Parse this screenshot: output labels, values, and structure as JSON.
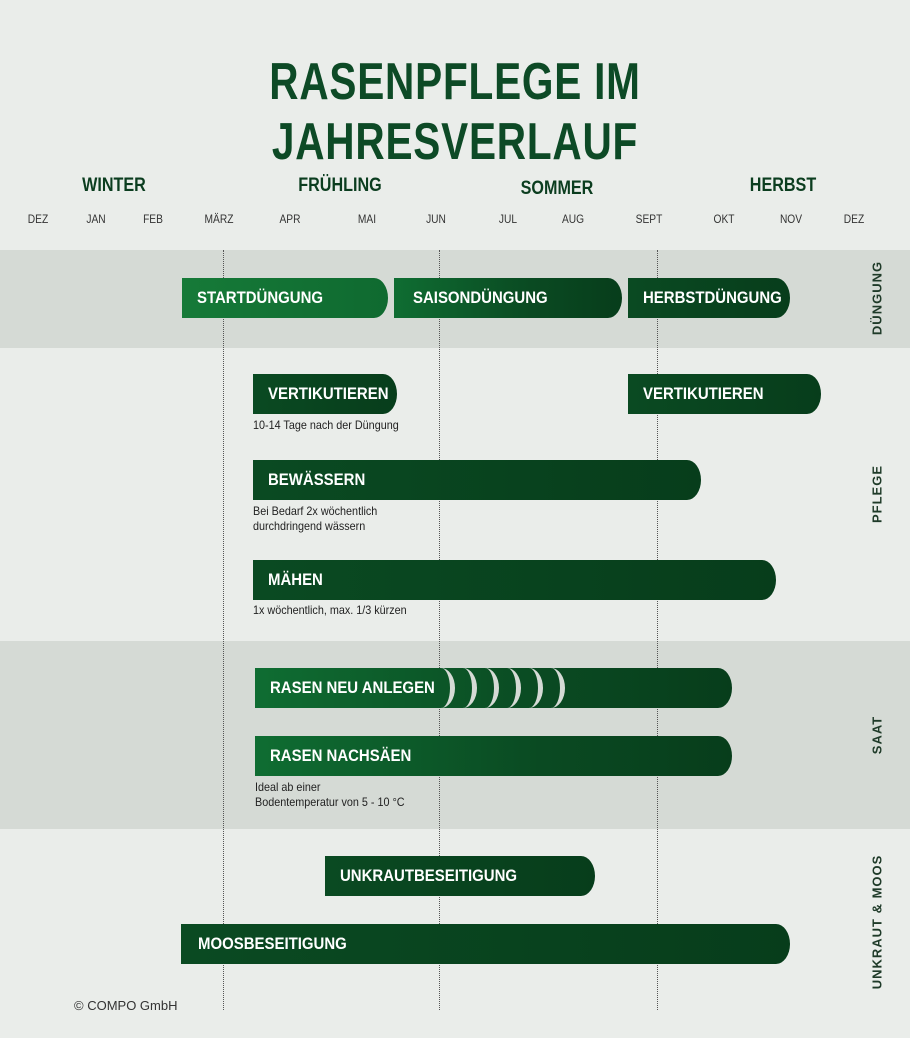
{
  "title": "RASENPFLEGE IM JAHRESVERLAUF",
  "seasons": [
    "WINTER",
    "FRÜHLING",
    "SOMMER",
    "HERBST"
  ],
  "months": [
    "DEZ",
    "JAN",
    "FEB",
    "MÄRZ",
    "APR",
    "MAI",
    "JUN",
    "JUL",
    "AUG",
    "SEPT",
    "OKT",
    "NOV",
    "DEZ"
  ],
  "sections": [
    "DÜNGUNG",
    "PFLEGE",
    "SAAT",
    "UNKRAUT & MOOS"
  ],
  "bars": {
    "startduengung": "STARTDÜNGUNG",
    "saisonduengung": "SAISONDÜNGUNG",
    "herbstduengung": "HERBSTDÜNGUNG",
    "vertikutieren1": "VERTIKUTIEREN",
    "vertikutieren2": "VERTIKUTIEREN",
    "bewaessern": "BEWÄSSERN",
    "maehen": "MÄHEN",
    "rasen_neu": "RASEN NEU ANLEGEN",
    "rasen_nachsaeen": "RASEN NACHSÄEN",
    "unkraut": "UNKRAUTBESEITIGUNG",
    "moos": "MOOSBESEITIGUNG"
  },
  "notes": {
    "vertikutieren": "10-14 Tage nach der Düngung",
    "bewaessern_1": "Bei Bedarf 2x wöchentlich",
    "bewaessern_2": "durchdringend wässern",
    "maehen": "1x wöchentlich, max. 1/3 kürzen",
    "nachsaeen_1": "Ideal ab einer",
    "nachsaeen_2": "Bodentemperatur von 5 - 10 °C"
  },
  "copyright": "© COMPO GmbH",
  "colors": {
    "primary": "#0d4a26",
    "bright": "#167a38",
    "band": "#d5dad5",
    "background": "#eaedea"
  }
}
